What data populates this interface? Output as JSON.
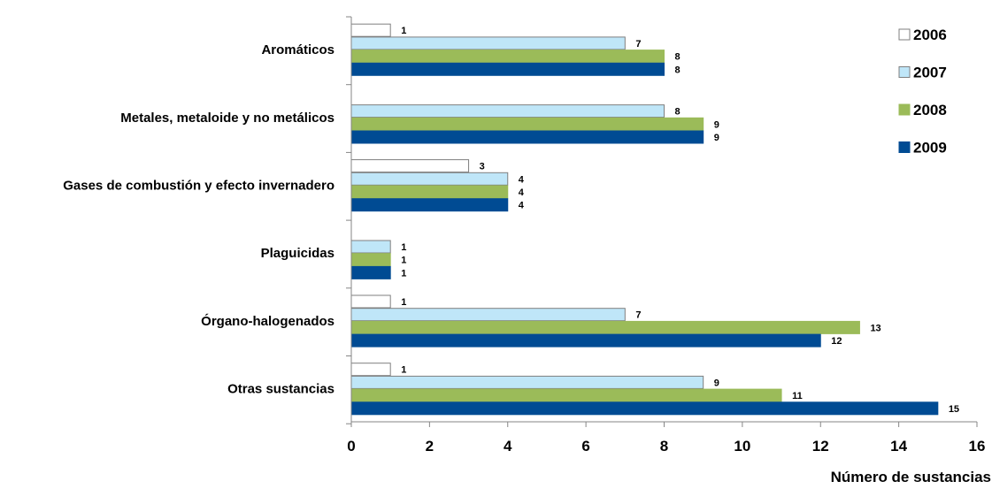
{
  "chart_data": {
    "type": "bar",
    "orientation": "horizontal",
    "categories": [
      "Aromáticos",
      "Metales, metaloide y no metálicos",
      "Gases de combustión y efecto invernadero",
      "Plaguicidas",
      "Órgano-halogenados",
      "Otras sustancias"
    ],
    "series": [
      {
        "name": "2006",
        "color": "#ffffff",
        "stroke": "#7f7f7f",
        "values": [
          1,
          null,
          3,
          null,
          1,
          1
        ]
      },
      {
        "name": "2007",
        "color": "#bfe6f8",
        "stroke": "#7f7f7f",
        "values": [
          7,
          8,
          4,
          1,
          7,
          9
        ]
      },
      {
        "name": "2008",
        "color": "#9bbb59",
        "stroke": "#9bbb59",
        "values": [
          8,
          9,
          4,
          1,
          13,
          11
        ]
      },
      {
        "name": "2009",
        "color": "#004b93",
        "stroke": "#004b93",
        "values": [
          8,
          9,
          4,
          1,
          12,
          15
        ]
      }
    ],
    "xlabel": "Número de sustancias",
    "xlim": [
      0,
      16
    ],
    "xticks": [
      "0",
      "2",
      "4",
      "6",
      "8",
      "10",
      "12",
      "14",
      "16"
    ],
    "legend_position": "top-right",
    "grid": false
  }
}
